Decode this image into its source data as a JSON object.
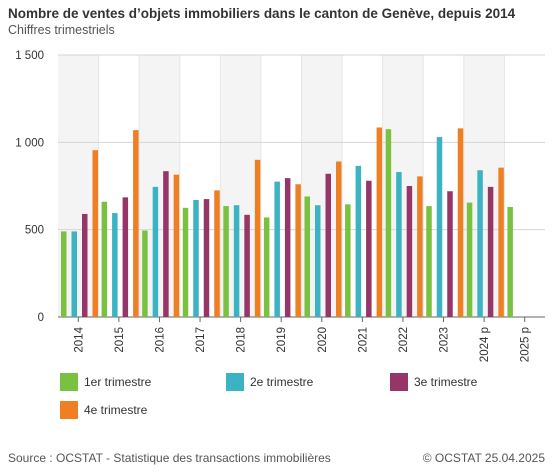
{
  "header": {
    "title": "Nombre de ventes d’objets immobiliers dans le canton de Genève, depuis 2014",
    "subtitle": "Chiffres trimestriels"
  },
  "footer": {
    "source": "Source : OCSTAT - Statistique des transactions immobilières",
    "copyright": "© OCSTAT 25.04.2025"
  },
  "chart_data": {
    "type": "bar",
    "title": "Nombre de ventes d’objets immobiliers dans le canton de Genève, depuis 2014",
    "subtitle": "Chiffres trimestriels",
    "categories": [
      "2014",
      "2015",
      "2016",
      "2017",
      "2018",
      "2019",
      "2020",
      "2021",
      "2022",
      "2023",
      "2024 p",
      "2025 p"
    ],
    "ylim": [
      0,
      1500
    ],
    "yticks": [
      0,
      500,
      1000,
      1500
    ],
    "ytick_labels": [
      "0",
      "500",
      "1 000",
      "1 500"
    ],
    "grid": true,
    "legend_position": "bottom",
    "series": [
      {
        "name": "1er trimestre",
        "color": "#7ac142",
        "values": [
          490,
          660,
          495,
          625,
          635,
          570,
          690,
          645,
          1075,
          635,
          655,
          630
        ]
      },
      {
        "name": "2e trimestre",
        "color": "#3bb3c3",
        "values": [
          490,
          595,
          745,
          670,
          640,
          775,
          640,
          865,
          830,
          1030,
          840,
          null
        ]
      },
      {
        "name": "3e trimestre",
        "color": "#963567",
        "values": [
          590,
          685,
          835,
          675,
          585,
          795,
          820,
          780,
          750,
          720,
          745,
          null
        ]
      },
      {
        "name": "4e trimestre",
        "color": "#ee7f23",
        "values": [
          955,
          1070,
          815,
          725,
          900,
          760,
          890,
          1085,
          805,
          1080,
          855,
          null
        ]
      }
    ]
  }
}
